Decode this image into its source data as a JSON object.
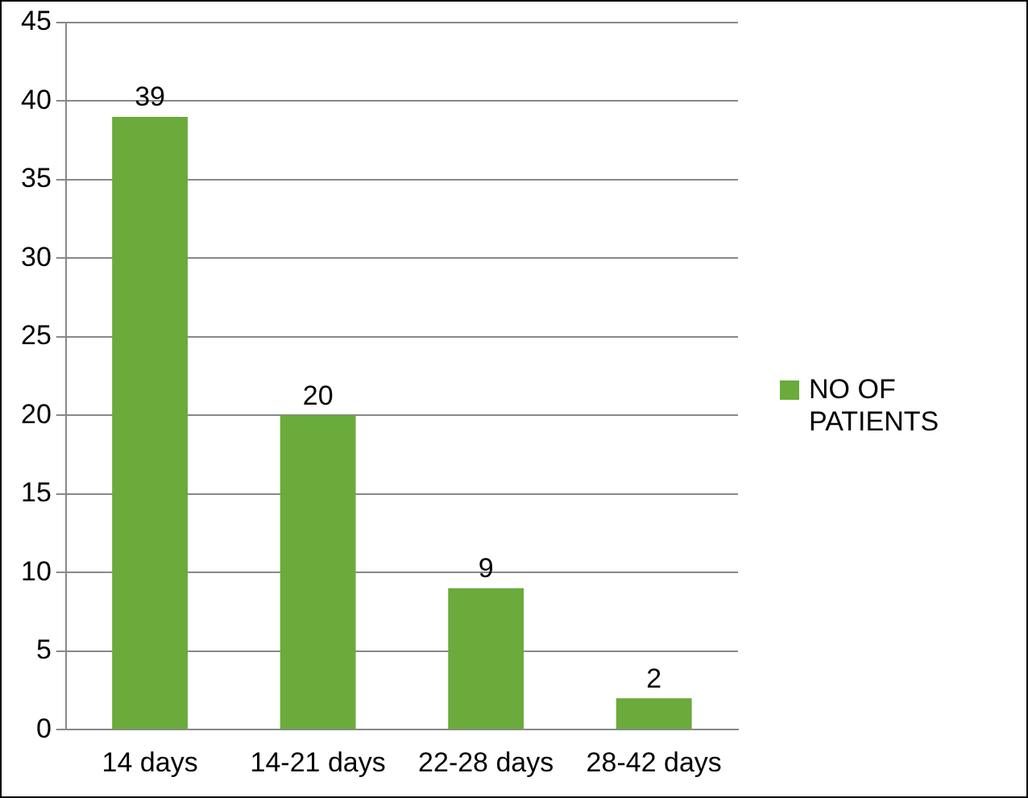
{
  "chart_data": {
    "type": "bar",
    "categories": [
      "14 days",
      "14-21 days",
      "22-28 days",
      "28-42 days"
    ],
    "series": [
      {
        "name": "NO OF PATIENTS",
        "color": "#6aab3c",
        "values": [
          39,
          20,
          9,
          2
        ]
      }
    ],
    "ylim": [
      0,
      45
    ],
    "yticks": [
      0,
      5,
      10,
      15,
      20,
      25,
      30,
      35,
      40,
      45
    ],
    "grid": "y",
    "legend": "right",
    "data_labels": true
  }
}
